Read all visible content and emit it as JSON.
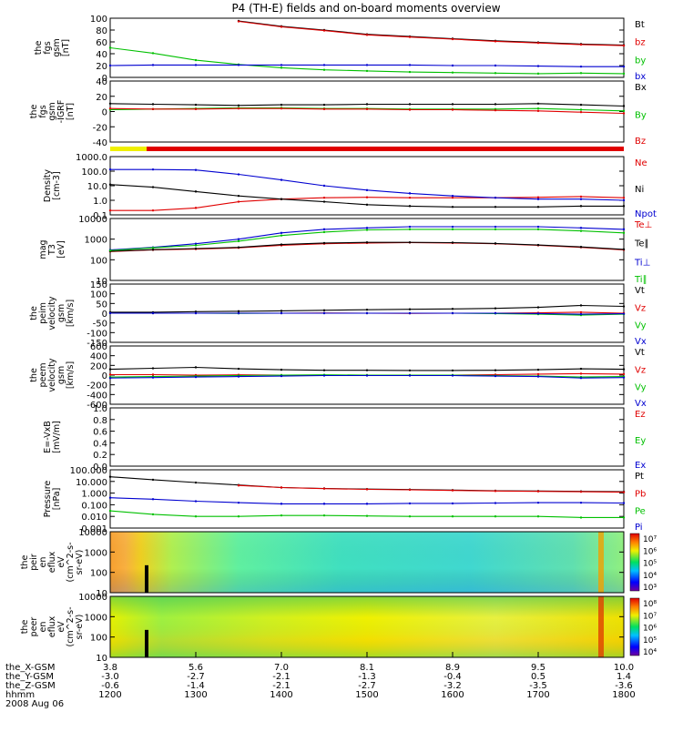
{
  "title": "P4 (TH-E) fields and on-board moments overview",
  "colors": {
    "black": "#000000",
    "red": "#e00000",
    "green": "#00c000",
    "blue": "#0000d0",
    "yellow": "#f0f000"
  },
  "time_ticks": [
    "1200",
    "1300",
    "1400",
    "1500",
    "1600",
    "1700",
    "1800"
  ],
  "ephemeris": {
    "labels": [
      "the_X-GSM",
      "the_Y-GSM",
      "the_Z-GSM",
      "hhmm",
      "2008 Aug 06"
    ],
    "x": [
      "3.8",
      "5.6",
      "7.0",
      "8.1",
      "8.9",
      "9.5",
      "10.0"
    ],
    "y": [
      "-3.0",
      "-2.7",
      "-2.1",
      "-1.3",
      "-0.4",
      "0.5",
      "1.4"
    ],
    "z": [
      "-0.6",
      "-1.4",
      "-2.1",
      "-2.7",
      "-3.2",
      "-3.5",
      "-3.6"
    ]
  },
  "panels": [
    {
      "id": "fgs-gsm",
      "ylabel": [
        "the",
        "fgs",
        "gsm",
        "[nT]"
      ],
      "ticks": [
        "100",
        "80",
        "60",
        "40",
        "20",
        "0"
      ],
      "legend": [
        {
          "t": "Bt",
          "c": "black"
        },
        {
          "t": "bz",
          "c": "red"
        },
        {
          "t": "by",
          "c": "green"
        },
        {
          "t": "bx",
          "c": "blue"
        }
      ]
    },
    {
      "id": "fgs-gsm-igrf",
      "ylabel": [
        "the",
        "fgs",
        "gsm",
        "-IGRF",
        "[nT]"
      ],
      "ticks": [
        "40",
        "20",
        "0",
        "-20",
        "-40"
      ],
      "legend": [
        {
          "t": "Bx",
          "c": "black"
        },
        {
          "t": "By",
          "c": "green"
        },
        {
          "t": "Bz",
          "c": "red"
        }
      ]
    },
    {
      "id": "density",
      "ylabel": [
        "Density",
        "[cm-3]"
      ],
      "ticks": [
        "1000.0",
        "100.0",
        "10.0",
        "1.0",
        "0.1"
      ],
      "legend": [
        {
          "t": "Ne",
          "c": "red"
        },
        {
          "t": "Ni",
          "c": "black"
        },
        {
          "t": "Npot",
          "c": "blue"
        }
      ]
    },
    {
      "id": "temperature",
      "ylabel": [
        "mag",
        "T3",
        "[eV]"
      ],
      "ticks": [
        "10000",
        "1000",
        "100",
        "10"
      ],
      "legend": [
        {
          "t": "Te⊥",
          "c": "red"
        },
        {
          "t": "Te∥",
          "c": "black"
        },
        {
          "t": "Ti⊥",
          "c": "blue"
        },
        {
          "t": "Ti∥",
          "c": "green"
        }
      ]
    },
    {
      "id": "peim-velocity",
      "ylabel": [
        "the",
        "peim",
        "velocity",
        "gsm",
        "[km/s]"
      ],
      "ticks": [
        "150",
        "100",
        "50",
        "0",
        "-50",
        "-100",
        "-150"
      ],
      "legend": [
        {
          "t": "Vt",
          "c": "black"
        },
        {
          "t": "Vz",
          "c": "red"
        },
        {
          "t": "Vy",
          "c": "green"
        },
        {
          "t": "Vx",
          "c": "blue"
        }
      ]
    },
    {
      "id": "peem-velocity",
      "ylabel": [
        "the",
        "peem",
        "velocity",
        "gsm",
        "[km/s]"
      ],
      "ticks": [
        "600",
        "400",
        "200",
        "0",
        "-200",
        "-400",
        "-600"
      ],
      "legend": [
        {
          "t": "Vt",
          "c": "black"
        },
        {
          "t": "Vz",
          "c": "red"
        },
        {
          "t": "Vy",
          "c": "green"
        },
        {
          "t": "Vx",
          "c": "blue"
        }
      ]
    },
    {
      "id": "e-vxb",
      "ylabel": [
        "E=-VxB",
        "[mV/m]"
      ],
      "ticks": [
        "1.0",
        "0.8",
        "0.6",
        "0.4",
        "0.2",
        "0.0"
      ],
      "legend": [
        {
          "t": "Ez",
          "c": "red"
        },
        {
          "t": "Ey",
          "c": "green"
        },
        {
          "t": "Ex",
          "c": "blue"
        }
      ]
    },
    {
      "id": "pressure",
      "ylabel": [
        "Pressure",
        "[nPa]"
      ],
      "ticks": [
        "100.000",
        "10.000",
        "1.000",
        "0.100",
        "0.010",
        "0.001"
      ],
      "legend": [
        {
          "t": "Pt",
          "c": "black"
        },
        {
          "t": "Pb",
          "c": "red"
        },
        {
          "t": "Pe",
          "c": "green"
        },
        {
          "t": "Pi",
          "c": "blue"
        }
      ]
    },
    {
      "id": "peir-spec",
      "ylabel": [
        "the",
        "peir",
        "en",
        "eflux",
        "eV",
        "(cm^2-s-",
        "sr-eV)"
      ],
      "ticks": [
        "10000",
        "1000",
        "100",
        "10"
      ],
      "colorbar": [
        "10⁷",
        "10⁶",
        "10⁵",
        "10⁴",
        "10³"
      ]
    },
    {
      "id": "peer-spec",
      "ylabel": [
        "the",
        "peer",
        "en",
        "eflux",
        "eV",
        "(cm^2-s-",
        "sr-eV)"
      ],
      "ticks": [
        "10000",
        "1000",
        "100",
        "10"
      ],
      "colorbar": [
        "10⁸",
        "10⁷",
        "10⁶",
        "10⁵",
        "10⁴"
      ]
    }
  ],
  "chart_data": {
    "type": "line",
    "title": "P4 (TH-E) fields and on-board moments overview",
    "x_hhmm": [
      1200,
      1230,
      1300,
      1330,
      1400,
      1430,
      1500,
      1530,
      1600,
      1630,
      1700,
      1730,
      1800
    ],
    "x_ticks": [
      "1200",
      "1300",
      "1400",
      "1500",
      "1600",
      "1700",
      "1800"
    ],
    "xlim": [
      1200,
      1800
    ],
    "panels": [
      {
        "id": "fgs-gsm",
        "ylim": [
          -10,
          100
        ],
        "series": [
          {
            "name": "Bt",
            "color": "black",
            "values": [
              null,
              null,
              null,
              95,
              85,
              78,
              70,
              66,
              62,
              58,
              55,
              52,
              50
            ]
          },
          {
            "name": "bz",
            "color": "red",
            "values": [
              null,
              null,
              null,
              94,
              84,
              77,
              69,
              65,
              61,
              57,
              54,
              51,
              49
            ]
          },
          {
            "name": "by",
            "color": "green",
            "values": [
              45,
              35,
              22,
              14,
              8,
              4,
              2,
              0,
              -1,
              -2,
              -3,
              -2,
              -3
            ]
          },
          {
            "name": "bx",
            "color": "blue",
            "values": [
              12,
              13,
              13,
              13,
              13,
              13,
              13,
              13,
              12,
              12,
              11,
              10,
              10
            ]
          }
        ]
      },
      {
        "id": "fgs-gsm-igrf",
        "ylim": [
          -55,
          45
        ],
        "series": [
          {
            "name": "Bx",
            "color": "black",
            "values": [
              8,
              7,
              6,
              5,
              6,
              6,
              7,
              7,
              7,
              7,
              8,
              6,
              4
            ]
          },
          {
            "name": "By",
            "color": "green",
            "values": [
              -2,
              -1,
              0,
              1,
              1,
              0,
              0,
              -1,
              -1,
              -1,
              0,
              -2,
              -4
            ]
          },
          {
            "name": "Bz",
            "color": "red",
            "values": [
              0,
              -1,
              -1,
              0,
              0,
              -1,
              -1,
              -2,
              -2,
              -3,
              -4,
              -6,
              -8
            ]
          }
        ]
      },
      {
        "id": "density",
        "scale": "log",
        "ylim": [
          0.1,
          1000
        ],
        "series": [
          {
            "name": "Ne",
            "color": "red",
            "values": [
              0.2,
              0.2,
              0.3,
              0.8,
              1.2,
              1.5,
              1.6,
              1.5,
              1.5,
              1.5,
              1.6,
              1.8,
              1.5
            ]
          },
          {
            "name": "Ni",
            "color": "black",
            "values": [
              12,
              8,
              4,
              2,
              1.2,
              0.8,
              0.5,
              0.4,
              0.35,
              0.35,
              0.35,
              0.4,
              0.4
            ]
          },
          {
            "name": "Npot",
            "color": "blue",
            "values": [
              130,
              130,
              120,
              60,
              25,
              10,
              5,
              3,
              2,
              1.5,
              1.2,
              1.2,
              1
            ]
          }
        ]
      },
      {
        "id": "temperature",
        "scale": "log",
        "ylim": [
          10,
          10000
        ],
        "series": [
          {
            "name": "Te⊥",
            "color": "red",
            "values": [
              250,
              300,
              330,
              380,
              500,
              600,
              650,
              680,
              650,
              600,
              500,
              400,
              300
            ]
          },
          {
            "name": "Te∥",
            "color": "black",
            "values": [
              260,
              310,
              350,
              400,
              550,
              650,
              700,
              700,
              680,
              620,
              520,
              420,
              320
            ]
          },
          {
            "name": "Ti⊥",
            "color": "blue",
            "values": [
              300,
              400,
              600,
              1000,
              2000,
              3000,
              3500,
              4000,
              4000,
              4000,
              4000,
              3500,
              3000
            ]
          },
          {
            "name": "Ti∥",
            "color": "green",
            "values": [
              280,
              380,
              500,
              800,
              1500,
              2200,
              2800,
              3000,
              3000,
              3000,
              3000,
              2500,
              2000
            ]
          }
        ]
      },
      {
        "id": "peim-velocity",
        "ylim": [
          -150,
          150
        ],
        "series": [
          {
            "name": "Vt",
            "color": "black",
            "values": [
              5,
              5,
              8,
              10,
              12,
              15,
              18,
              20,
              22,
              25,
              30,
              40,
              35
            ]
          },
          {
            "name": "Vz",
            "color": "red",
            "values": [
              0,
              0,
              0,
              0,
              0,
              1,
              0,
              -1,
              0,
              0,
              2,
              5,
              0
            ]
          },
          {
            "name": "Vy",
            "color": "green",
            "values": [
              0,
              0,
              0,
              -1,
              0,
              0,
              0,
              0,
              0,
              -2,
              -5,
              -10,
              -5
            ]
          },
          {
            "name": "Vx",
            "color": "blue",
            "values": [
              0,
              0,
              0,
              0,
              0,
              0,
              0,
              0,
              0,
              0,
              -2,
              -5,
              -3
            ]
          }
        ]
      },
      {
        "id": "peem-velocity",
        "ylim": [
          -600,
          600
        ],
        "series": [
          {
            "name": "Vt",
            "color": "black",
            "values": [
              120,
              140,
              160,
              130,
              110,
              100,
              100,
              95,
              95,
              100,
              110,
              130,
              120
            ]
          },
          {
            "name": "Vz",
            "color": "red",
            "values": [
              10,
              10,
              0,
              5,
              0,
              0,
              0,
              0,
              0,
              10,
              20,
              30,
              20
            ]
          },
          {
            "name": "Vy",
            "color": "green",
            "values": [
              -40,
              -30,
              -20,
              -10,
              0,
              5,
              0,
              0,
              0,
              -10,
              -20,
              -40,
              -30
            ]
          },
          {
            "name": "Vx",
            "color": "blue",
            "values": [
              -60,
              -50,
              -40,
              -30,
              -20,
              -10,
              -10,
              -10,
              -10,
              -20,
              -30,
              -60,
              -50
            ]
          }
        ]
      },
      {
        "id": "e-vxb",
        "ylim": [
          0,
          1
        ],
        "series": []
      },
      {
        "id": "pressure",
        "scale": "log",
        "ylim": [
          0.001,
          100
        ],
        "series": [
          {
            "name": "Pt",
            "color": "black",
            "values": [
              25,
              14,
              8,
              5,
              3,
              2.5,
              2.2,
              2,
              1.8,
              1.6,
              1.5,
              1.4,
              1.3
            ]
          },
          {
            "name": "Pb",
            "color": "red",
            "values": [
              null,
              null,
              null,
              4.5,
              3,
              2.4,
              2.1,
              1.9,
              1.7,
              1.5,
              1.4,
              1.3,
              1.2
            ]
          },
          {
            "name": "Pe",
            "color": "green",
            "values": [
              0.03,
              0.015,
              0.01,
              0.01,
              0.012,
              0.012,
              0.011,
              0.01,
              0.01,
              0.01,
              0.01,
              0.008,
              0.008
            ]
          },
          {
            "name": "Pi",
            "color": "blue",
            "values": [
              0.4,
              0.3,
              0.2,
              0.15,
              0.12,
              0.12,
              0.12,
              0.13,
              0.13,
              0.14,
              0.15,
              0.15,
              0.14
            ]
          }
        ]
      }
    ]
  }
}
